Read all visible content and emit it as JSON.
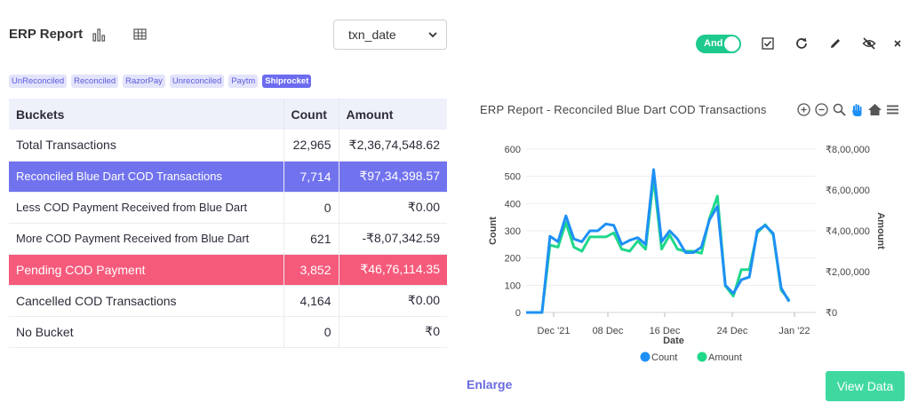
{
  "header": {
    "title": "ERP Report",
    "date_select": {
      "value": "txn_date"
    },
    "toggle_label": "And"
  },
  "tags": [
    "UnReconciled",
    "Reconciled",
    "RazorPay",
    "Unreconciled",
    "Paytm",
    "Shiprocket"
  ],
  "table": {
    "columns": [
      "Buckets",
      "Count",
      "Amount"
    ],
    "rows": [
      {
        "bucket": "Total Transactions",
        "count": "22,965",
        "amount": "₹2,36,74,548.62"
      },
      {
        "bucket": "Reconciled Blue Dart COD Transactions",
        "count": "7,714",
        "amount": "₹97,34,398.57"
      },
      {
        "bucket": "Less COD Payment Received from Blue Dart",
        "count": "0",
        "amount": "₹0.00"
      },
      {
        "bucket": "More COD Payment Received from Blue Dart",
        "count": "621",
        "amount": "-₹8,07,342.59"
      },
      {
        "bucket": "Pending COD Payment",
        "count": "3,852",
        "amount": "₹46,76,114.35"
      },
      {
        "bucket": "Cancelled COD Transactions",
        "count": "4,164",
        "amount": "₹0.00"
      },
      {
        "bucket": "No Bucket",
        "count": "0",
        "amount": "₹0"
      }
    ]
  },
  "chart_data": {
    "type": "line",
    "title": "ERP Report - Reconciled Blue Dart COD Transactions",
    "xlabel": "Date",
    "ylabel": "Count",
    "y2label": "Amount",
    "x_ticks": [
      "Dec '21",
      "08 Dec",
      "16 Dec",
      "24 Dec",
      "Jan '22"
    ],
    "y_ticks": [
      "0",
      "100",
      "200",
      "300",
      "400",
      "500",
      "600"
    ],
    "y2_ticks": [
      "₹0",
      "₹2,00,000",
      "₹4,00,000",
      "₹6,00,000",
      "₹8,00,000"
    ],
    "ylim": [
      0,
      600
    ],
    "y2lim": [
      0,
      800000
    ],
    "series": [
      {
        "name": "Count",
        "color": "#1e90f5",
        "values": [
          0,
          0,
          0,
          280,
          260,
          355,
          270,
          260,
          300,
          300,
          325,
          320,
          250,
          265,
          275,
          250,
          525,
          260,
          300,
          270,
          220,
          220,
          240,
          340,
          390,
          100,
          70,
          120,
          130,
          300,
          320,
          290,
          90,
          40
        ]
      },
      {
        "name": "Amount",
        "color": "#1fd88a",
        "values": [
          0,
          0,
          0,
          330000,
          320000,
          440000,
          320000,
          300000,
          370000,
          370000,
          370000,
          390000,
          310000,
          300000,
          350000,
          310000,
          660000,
          310000,
          380000,
          310000,
          300000,
          300000,
          290000,
          460000,
          570000,
          130000,
          80000,
          210000,
          210000,
          390000,
          430000,
          380000,
          110000,
          60000
        ]
      }
    ],
    "legend_position": "bottom"
  },
  "footer": {
    "enlarge": "Enlarge",
    "view_data": "View Data"
  }
}
